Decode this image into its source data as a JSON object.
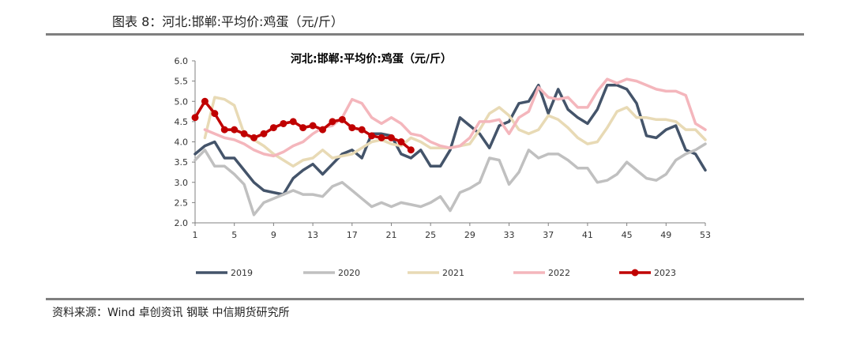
{
  "figure": {
    "label": "图表 8：河北:邯郸:平均价:鸡蛋（元/斤）",
    "source": "资料来源：Wind 卓创资讯 钢联 中信期货研究所"
  },
  "chart_data": {
    "type": "line",
    "title": "河北:邯郸:平均价:鸡蛋（元/斤）",
    "xlabel": "",
    "ylabel": "",
    "xlim": [
      1,
      53
    ],
    "ylim": [
      2.0,
      6.0
    ],
    "x_ticks": [
      1,
      5,
      9,
      13,
      17,
      21,
      25,
      29,
      33,
      37,
      41,
      45,
      49,
      53
    ],
    "y_ticks": [
      "2.0",
      "2.5",
      "3.0",
      "3.5",
      "4.0",
      "4.5",
      "5.0",
      "5.5",
      "6.0"
    ],
    "grid": false,
    "legend_position": "bottom",
    "series": [
      {
        "name": "2019",
        "color": "#44546a",
        "marker": false,
        "x": [
          1,
          2,
          3,
          4,
          5,
          6,
          7,
          8,
          9,
          10,
          11,
          12,
          13,
          14,
          15,
          16,
          17,
          18,
          19,
          20,
          21,
          22,
          23,
          24,
          25,
          26,
          27,
          28,
          29,
          30,
          31,
          32,
          33,
          34,
          35,
          36,
          37,
          38,
          39,
          40,
          41,
          42,
          43,
          44,
          45,
          46,
          47,
          48,
          49,
          50,
          51,
          52,
          53
        ],
        "values": [
          3.7,
          3.9,
          4.0,
          3.6,
          3.6,
          3.3,
          3.0,
          2.8,
          2.75,
          2.7,
          3.1,
          3.3,
          3.45,
          3.2,
          3.45,
          3.7,
          3.8,
          3.6,
          4.2,
          4.2,
          4.15,
          3.7,
          3.6,
          3.8,
          3.4,
          3.4,
          3.8,
          4.6,
          4.4,
          4.2,
          3.85,
          4.4,
          4.5,
          4.95,
          5.0,
          5.4,
          4.7,
          5.3,
          4.8,
          4.6,
          4.45,
          4.8,
          5.4,
          5.4,
          5.3,
          4.95,
          4.15,
          4.1,
          4.3,
          4.4,
          3.8,
          3.7,
          3.3
        ]
      },
      {
        "name": "2020",
        "color": "#c0c0c0",
        "marker": false,
        "x": [
          1,
          2,
          3,
          4,
          5,
          6,
          7,
          8,
          9,
          10,
          11,
          12,
          13,
          14,
          15,
          16,
          17,
          18,
          19,
          20,
          21,
          22,
          23,
          24,
          25,
          26,
          27,
          28,
          29,
          30,
          31,
          32,
          33,
          34,
          35,
          36,
          37,
          38,
          39,
          40,
          41,
          42,
          43,
          44,
          45,
          46,
          47,
          48,
          49,
          50,
          51,
          52,
          53
        ],
        "values": [
          3.55,
          3.8,
          3.4,
          3.4,
          3.2,
          2.95,
          2.2,
          2.5,
          2.6,
          2.7,
          2.8,
          2.7,
          2.7,
          2.65,
          2.9,
          3.0,
          2.8,
          2.6,
          2.4,
          2.5,
          2.4,
          2.5,
          2.45,
          2.4,
          2.5,
          2.65,
          2.3,
          2.75,
          2.85,
          3.0,
          3.6,
          3.55,
          2.95,
          3.25,
          3.8,
          3.6,
          3.7,
          3.7,
          3.55,
          3.35,
          3.35,
          3.0,
          3.05,
          3.2,
          3.5,
          3.3,
          3.1,
          3.05,
          3.2,
          3.55,
          3.7,
          3.8,
          3.95
        ]
      },
      {
        "name": "2021",
        "color": "#e8dab5",
        "marker": false,
        "x": [
          2,
          3,
          4,
          5,
          6,
          7,
          8,
          9,
          10,
          11,
          12,
          13,
          14,
          15,
          16,
          17,
          18,
          19,
          20,
          21,
          22,
          23,
          24,
          25,
          26,
          27,
          28,
          29,
          30,
          31,
          32,
          33,
          34,
          35,
          36,
          37,
          38,
          39,
          40,
          41,
          42,
          43,
          44,
          45,
          46,
          47,
          48,
          49,
          50,
          51,
          52,
          53
        ],
        "values": [
          4.1,
          5.1,
          5.05,
          4.9,
          4.2,
          4.05,
          3.9,
          3.7,
          3.55,
          3.4,
          3.55,
          3.6,
          3.8,
          3.6,
          3.65,
          3.7,
          3.85,
          4.0,
          4.05,
          3.95,
          3.9,
          4.1,
          4.0,
          3.85,
          3.85,
          3.85,
          3.9,
          3.95,
          4.3,
          4.7,
          4.85,
          4.65,
          4.3,
          4.2,
          4.3,
          4.65,
          4.55,
          4.35,
          4.1,
          3.95,
          4.0,
          4.35,
          4.75,
          4.85,
          4.6,
          4.6,
          4.55,
          4.55,
          4.5,
          4.3,
          4.3,
          4.05
        ]
      },
      {
        "name": "2022",
        "color": "#f4b6bc",
        "marker": false,
        "x": [
          2,
          3,
          4,
          5,
          6,
          7,
          8,
          9,
          10,
          11,
          12,
          13,
          14,
          15,
          16,
          17,
          18,
          19,
          20,
          21,
          22,
          23,
          24,
          25,
          26,
          27,
          28,
          29,
          30,
          31,
          32,
          33,
          34,
          35,
          36,
          37,
          38,
          39,
          40,
          41,
          42,
          43,
          44,
          45,
          46,
          47,
          48,
          49,
          50,
          51,
          52,
          53
        ],
        "values": [
          4.3,
          4.2,
          4.1,
          4.05,
          3.95,
          3.8,
          3.7,
          3.65,
          3.75,
          3.9,
          4.0,
          4.2,
          4.35,
          4.4,
          4.6,
          5.05,
          4.95,
          4.6,
          4.45,
          4.6,
          4.45,
          4.2,
          4.15,
          4.0,
          3.9,
          3.85,
          3.9,
          4.1,
          4.5,
          4.5,
          4.55,
          4.2,
          4.6,
          4.75,
          5.35,
          5.1,
          5.05,
          5.1,
          4.85,
          4.85,
          5.25,
          5.55,
          5.45,
          5.55,
          5.5,
          5.4,
          5.3,
          5.25,
          5.25,
          5.15,
          4.45,
          4.3
        ]
      },
      {
        "name": "2023",
        "color": "#c00000",
        "marker": true,
        "x": [
          1,
          2,
          3,
          4,
          5,
          6,
          7,
          8,
          9,
          10,
          11,
          12,
          13,
          14,
          15,
          16,
          17,
          18,
          19,
          20,
          21,
          22,
          23
        ],
        "values": [
          4.6,
          5.0,
          4.7,
          4.3,
          4.3,
          4.2,
          4.1,
          4.2,
          4.35,
          4.45,
          4.5,
          4.35,
          4.4,
          4.3,
          4.5,
          4.55,
          4.35,
          4.3,
          4.15,
          4.1,
          4.1,
          4.0,
          3.8
        ]
      }
    ]
  }
}
